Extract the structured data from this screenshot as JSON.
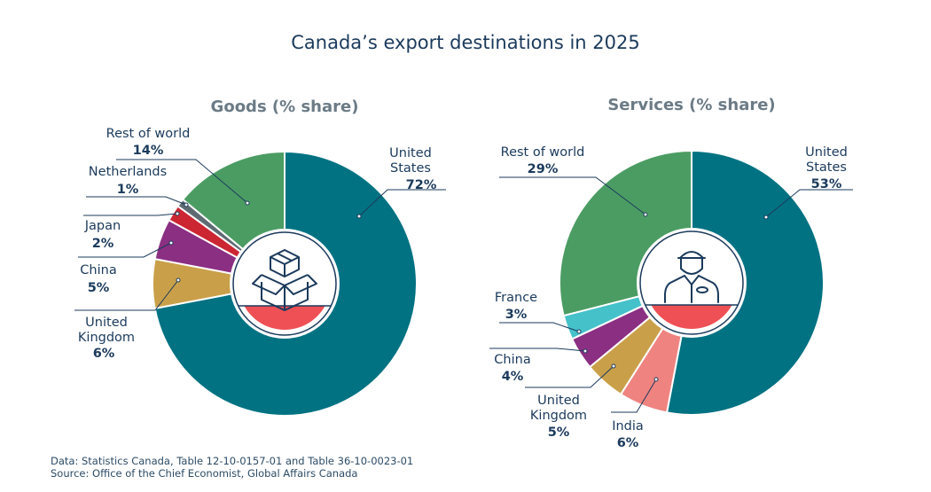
{
  "title": "Canada’s export destinations in 2025",
  "source_lines": [
    "Data: Statistics Canada, Table 12-10-0157-01 and Table 36-10-0023-01",
    "Source: Office of the Chief Economist, Global Affairs Canada"
  ],
  "icons": [
    "boxes-icon",
    "worker-icon"
  ],
  "chart_data": [
    {
      "type": "pie",
      "title": "Goods (% share)",
      "series": [
        {
          "name": "United States",
          "value": 72,
          "label": "72%",
          "color": "#007282"
        },
        {
          "name": "United Kingdom",
          "value": 6,
          "label": "6%",
          "color": "#c9a049"
        },
        {
          "name": "China",
          "value": 5,
          "label": "5%",
          "color": "#8b2f82"
        },
        {
          "name": "Japan",
          "value": 2,
          "label": "2%",
          "color": "#cc2633"
        },
        {
          "name": "Netherlands",
          "value": 1,
          "label": "1%",
          "color": "#5f6b73"
        },
        {
          "name": "Rest of world",
          "value": 14,
          "label": "14%",
          "color": "#4b9c63"
        }
      ]
    },
    {
      "type": "pie",
      "title": "Services (% share)",
      "series": [
        {
          "name": "United States",
          "value": 53,
          "label": "53%",
          "color": "#007282"
        },
        {
          "name": "India",
          "value": 6,
          "label": "6%",
          "color": "#ef8380"
        },
        {
          "name": "United Kingdom",
          "value": 5,
          "label": "5%",
          "color": "#c9a049"
        },
        {
          "name": "China",
          "value": 4,
          "label": "4%",
          "color": "#8b2f82"
        },
        {
          "name": "France",
          "value": 3,
          "label": "3%",
          "color": "#45c1c9"
        },
        {
          "name": "Rest of world",
          "value": 29,
          "label": "29%",
          "color": "#4b9c63"
        }
      ]
    }
  ]
}
